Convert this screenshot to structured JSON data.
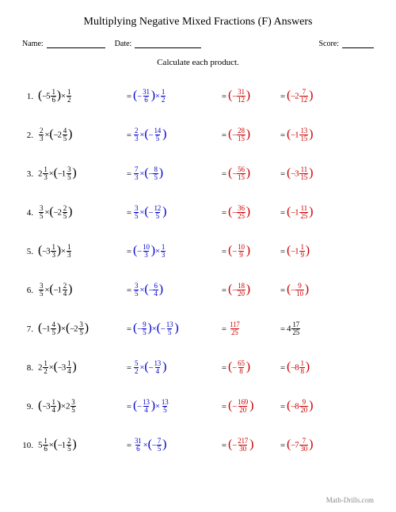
{
  "title": "Multiplying Negative Mixed Fractions (F) Answers",
  "header": {
    "name": "Name:",
    "date": "Date:",
    "score": "Score:"
  },
  "instruction": "Calculate each product.",
  "footer": "Math-Drills.com",
  "colors": {
    "problem": "#000000",
    "step": "#0000cc",
    "result": "#cc0000"
  },
  "blanks": {
    "name_w": 74,
    "date_w": 84,
    "score_w": 40
  },
  "problems": [
    {
      "n": "1.",
      "c1": {
        "html": "<span class='paren'>(</span><span class='neg'>−</span><span class='whole'>5</span><span class='frac'><span class='n'>1</span><span class='d'>6</span></span><span class='paren'>)</span><span class='op'>×</span><span class='frac'><span class='n'>1</span><span class='d'>2</span></span>"
      },
      "c2": {
        "html": "<span class='paren'>(</span><span class='neg'>−</span><span class='frac'><span class='n'>31</span><span class='d'>6</span></span><span class='paren'>)</span><span class='op'>×</span><span class='frac'><span class='n'>1</span><span class='d'>2</span></span>"
      },
      "c3": {
        "html": "<span class='paren'>(</span><span class='neg'>−</span><span class='frac'><span class='n'>31</span><span class='d'>12</span></span><span class='paren'>)</span>"
      },
      "c4": {
        "html": "<span class='paren'>(</span><span class='neg'>−</span><span class='whole'>2</span><span class='frac'><span class='n'>7</span><span class='d'>12</span></span><span class='paren'>)</span>"
      }
    },
    {
      "n": "2.",
      "c1": {
        "html": "<span class='frac'><span class='n'>2</span><span class='d'>3</span></span><span class='op'>×</span><span class='paren'>(</span><span class='neg'>−</span><span class='whole'>2</span><span class='frac'><span class='n'>4</span><span class='d'>5</span></span><span class='paren'>)</span>"
      },
      "c2": {
        "html": "<span class='frac'><span class='n'>2</span><span class='d'>3</span></span><span class='op'>×</span><span class='paren'>(</span><span class='neg'>−</span><span class='frac'><span class='n'>14</span><span class='d'>5</span></span><span class='paren'>)</span>"
      },
      "c3": {
        "html": "<span class='paren'>(</span><span class='neg'>−</span><span class='frac'><span class='n'>28</span><span class='d'>15</span></span><span class='paren'>)</span>"
      },
      "c4": {
        "html": "<span class='paren'>(</span><span class='neg'>−</span><span class='whole'>1</span><span class='frac'><span class='n'>13</span><span class='d'>15</span></span><span class='paren'>)</span>"
      }
    },
    {
      "n": "3.",
      "c1": {
        "html": "<span class='whole'>2</span><span class='frac'><span class='n'>1</span><span class='d'>3</span></span><span class='op'>×</span><span class='paren'>(</span><span class='neg'>−</span><span class='whole'>1</span><span class='frac'><span class='n'>3</span><span class='d'>5</span></span><span class='paren'>)</span>"
      },
      "c2": {
        "html": "<span class='frac'><span class='n'>7</span><span class='d'>3</span></span><span class='op'>×</span><span class='paren'>(</span><span class='neg'>−</span><span class='frac'><span class='n'>8</span><span class='d'>5</span></span><span class='paren'>)</span>"
      },
      "c3": {
        "html": "<span class='paren'>(</span><span class='neg'>−</span><span class='frac'><span class='n'>56</span><span class='d'>15</span></span><span class='paren'>)</span>"
      },
      "c4": {
        "html": "<span class='paren'>(</span><span class='neg'>−</span><span class='whole'>3</span><span class='frac'><span class='n'>11</span><span class='d'>15</span></span><span class='paren'>)</span>"
      }
    },
    {
      "n": "4.",
      "c1": {
        "html": "<span class='frac'><span class='n'>3</span><span class='d'>5</span></span><span class='op'>×</span><span class='paren'>(</span><span class='neg'>−</span><span class='whole'>2</span><span class='frac'><span class='n'>2</span><span class='d'>5</span></span><span class='paren'>)</span>"
      },
      "c2": {
        "html": "<span class='frac'><span class='n'>3</span><span class='d'>5</span></span><span class='op'>×</span><span class='paren'>(</span><span class='neg'>−</span><span class='frac'><span class='n'>12</span><span class='d'>5</span></span><span class='paren'>)</span>"
      },
      "c3": {
        "html": "<span class='paren'>(</span><span class='neg'>−</span><span class='frac'><span class='n'>36</span><span class='d'>25</span></span><span class='paren'>)</span>"
      },
      "c4": {
        "html": "<span class='paren'>(</span><span class='neg'>−</span><span class='whole'>1</span><span class='frac'><span class='n'>11</span><span class='d'>25</span></span><span class='paren'>)</span>"
      }
    },
    {
      "n": "5.",
      "c1": {
        "html": "<span class='paren'>(</span><span class='neg'>−</span><span class='whole'>3</span><span class='frac'><span class='n'>1</span><span class='d'>3</span></span><span class='paren'>)</span><span class='op'>×</span><span class='frac'><span class='n'>1</span><span class='d'>3</span></span>"
      },
      "c2": {
        "html": "<span class='paren'>(</span><span class='neg'>−</span><span class='frac'><span class='n'>10</span><span class='d'>3</span></span><span class='paren'>)</span><span class='op'>×</span><span class='frac'><span class='n'>1</span><span class='d'>3</span></span>"
      },
      "c3": {
        "html": "<span class='paren'>(</span><span class='neg'>−</span><span class='frac'><span class='n'>10</span><span class='d'>9</span></span><span class='paren'>)</span>"
      },
      "c4": {
        "html": "<span class='paren'>(</span><span class='neg'>−</span><span class='whole'>1</span><span class='frac'><span class='n'>1</span><span class='d'>9</span></span><span class='paren'>)</span>"
      }
    },
    {
      "n": "6.",
      "c1": {
        "html": "<span class='frac'><span class='n'>3</span><span class='d'>5</span></span><span class='op'>×</span><span class='paren'>(</span><span class='neg'>−</span><span class='whole'>1</span><span class='frac'><span class='n'>2</span><span class='d'>4</span></span><span class='paren'>)</span>"
      },
      "c2": {
        "html": "<span class='frac'><span class='n'>3</span><span class='d'>5</span></span><span class='op'>×</span><span class='paren'>(</span><span class='neg'>−</span><span class='frac'><span class='n'>6</span><span class='d'>4</span></span><span class='paren'>)</span>"
      },
      "c3": {
        "html": "<span class='paren'>(</span><span class='neg'>−</span><span class='frac'><span class='n'>18</span><span class='d'>20</span></span><span class='paren'>)</span>"
      },
      "c4": {
        "html": "<span class='paren'>(</span><span class='neg'>−</span><span class='frac'><span class='n'>9</span><span class='d'>10</span></span><span class='paren'>)</span>"
      }
    },
    {
      "n": "7.",
      "c1": {
        "html": "<span class='paren'>(</span><span class='neg'>−</span><span class='whole'>1</span><span class='frac'><span class='n'>4</span><span class='d'>5</span></span><span class='paren'>)</span><span class='op'>×</span><span class='paren'>(</span><span class='neg'>−</span><span class='whole'>2</span><span class='frac'><span class='n'>3</span><span class='d'>5</span></span><span class='paren'>)</span>"
      },
      "c2": {
        "html": "<span class='paren'>(</span><span class='neg'>−</span><span class='frac'><span class='n'>9</span><span class='d'>5</span></span><span class='paren'>)</span><span class='op'>×</span><span class='paren'>(</span><span class='neg'>−</span><span class='frac'><span class='n'>13</span><span class='d'>5</span></span><span class='paren'>)</span>"
      },
      "c3": {
        "html": "<span class='frac'><span class='n'>117</span><span class='d'>25</span></span>",
        "color": "c-red"
      },
      "c4": {
        "html": "<span class='whole'>4</span><span class='frac'><span class='n'>17</span><span class='d'>25</span></span>",
        "color": "c-black"
      }
    },
    {
      "n": "8.",
      "c1": {
        "html": "<span class='whole'>2</span><span class='frac'><span class='n'>1</span><span class='d'>2</span></span><span class='op'>×</span><span class='paren'>(</span><span class='neg'>−</span><span class='whole'>3</span><span class='frac'><span class='n'>1</span><span class='d'>4</span></span><span class='paren'>)</span>"
      },
      "c2": {
        "html": "<span class='frac'><span class='n'>5</span><span class='d'>2</span></span><span class='op'>×</span><span class='paren'>(</span><span class='neg'>−</span><span class='frac'><span class='n'>13</span><span class='d'>4</span></span><span class='paren'>)</span>"
      },
      "c3": {
        "html": "<span class='paren'>(</span><span class='neg'>−</span><span class='frac'><span class='n'>65</span><span class='d'>8</span></span><span class='paren'>)</span>"
      },
      "c4": {
        "html": "<span class='paren'>(</span><span class='neg'>−</span><span class='whole'>8</span><span class='frac'><span class='n'>1</span><span class='d'>8</span></span><span class='paren'>)</span>"
      }
    },
    {
      "n": "9.",
      "c1": {
        "html": "<span class='paren'>(</span><span class='neg'>−</span><span class='whole'>3</span><span class='frac'><span class='n'>1</span><span class='d'>4</span></span><span class='paren'>)</span><span class='op'>×</span><span class='whole'>2</span><span class='frac'><span class='n'>3</span><span class='d'>5</span></span>"
      },
      "c2": {
        "html": "<span class='paren'>(</span><span class='neg'>−</span><span class='frac'><span class='n'>13</span><span class='d'>4</span></span><span class='paren'>)</span><span class='op'>×</span><span class='frac'><span class='n'>13</span><span class='d'>5</span></span>"
      },
      "c3": {
        "html": "<span class='paren'>(</span><span class='neg'>−</span><span class='frac'><span class='n'>169</span><span class='d'>20</span></span><span class='paren'>)</span>"
      },
      "c4": {
        "html": "<span class='paren'>(</span><span class='neg'>−</span><span class='whole'>8</span><span class='frac'><span class='n'>9</span><span class='d'>20</span></span><span class='paren'>)</span>"
      }
    },
    {
      "n": "10.",
      "c1": {
        "html": "<span class='whole'>5</span><span class='frac'><span class='n'>1</span><span class='d'>6</span></span><span class='op'>×</span><span class='paren'>(</span><span class='neg'>−</span><span class='whole'>1</span><span class='frac'><span class='n'>2</span><span class='d'>5</span></span><span class='paren'>)</span>"
      },
      "c2": {
        "html": "<span class='frac'><span class='n'>31</span><span class='d'>6</span></span><span class='op'>×</span><span class='paren'>(</span><span class='neg'>−</span><span class='frac'><span class='n'>7</span><span class='d'>5</span></span><span class='paren'>)</span>"
      },
      "c3": {
        "html": "<span class='paren'>(</span><span class='neg'>−</span><span class='frac'><span class='n'>217</span><span class='d'>30</span></span><span class='paren'>)</span>"
      },
      "c4": {
        "html": "<span class='paren'>(</span><span class='neg'>−</span><span class='whole'>7</span><span class='frac'><span class='n'>7</span><span class='d'>30</span></span><span class='paren'>)</span>"
      }
    }
  ]
}
